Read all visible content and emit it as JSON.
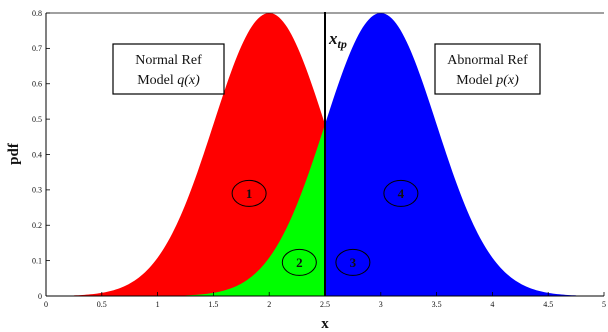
{
  "chart_data": {
    "type": "area",
    "xlabel": "x",
    "ylabel": "pdf",
    "xlim": [
      0,
      5
    ],
    "ylim": [
      0,
      0.8
    ],
    "x_ticks": [
      "0",
      "0.5",
      "1",
      "1.5",
      "2",
      "2.5",
      "3",
      "3.5",
      "4",
      "4.5",
      "5"
    ],
    "y_ticks": [
      "0",
      "0.1",
      "0.2",
      "0.3",
      "0.4",
      "0.5",
      "0.6",
      "0.7",
      "0.8"
    ],
    "grid": false,
    "series": [
      {
        "name": "Normal Ref Model q(x)",
        "distribution": "normal",
        "mean": 2.0,
        "std": 0.5,
        "peak": 0.8,
        "x_range": [
          0.25,
          3.75
        ]
      },
      {
        "name": "Abnormal Ref Model p(x)",
        "distribution": "normal",
        "mean": 3.0,
        "std": 0.5,
        "peak": 0.8,
        "x_range": [
          1.25,
          4.75
        ]
      }
    ],
    "threshold": {
      "label": "x",
      "label_subscript": "tp",
      "x": 2.5
    },
    "regions": [
      {
        "label": "1",
        "color": "#ff0000",
        "x": 1.82,
        "y": 0.29
      },
      {
        "label": "2",
        "color": "#00ff00",
        "x": 2.27,
        "y": 0.095
      },
      {
        "label": "3",
        "color": "#ffff00",
        "x": 2.75,
        "y": 0.095
      },
      {
        "label": "4",
        "color": "#0000ff",
        "x": 3.18,
        "y": 0.29
      }
    ],
    "annotations": [
      {
        "lines": [
          "Normal Ref",
          "Model q(x)"
        ],
        "line2_prefix": "Model ",
        "line2_var": "q(x)"
      },
      {
        "lines": [
          "Abnormal Ref",
          "Model p(x)"
        ],
        "line2_prefix": "Model ",
        "line2_var": "p(x)"
      }
    ]
  }
}
